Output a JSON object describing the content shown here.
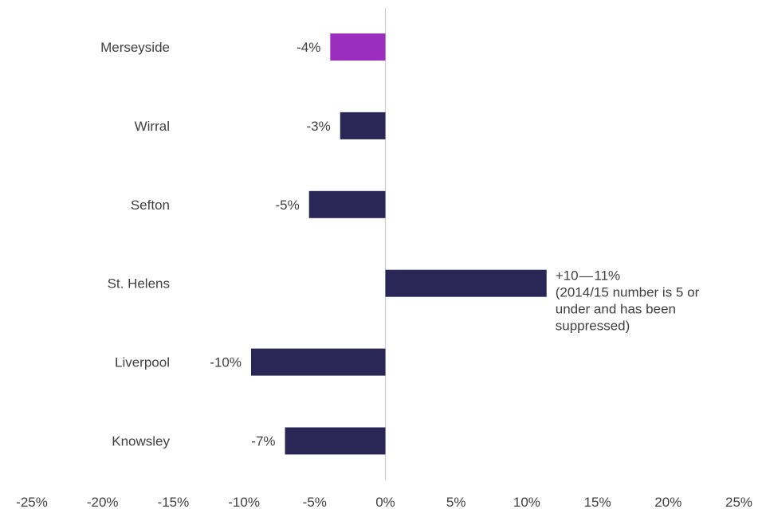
{
  "chart_data": {
    "type": "bar",
    "orientation": "horizontal",
    "categories": [
      "Merseyside",
      "Wirral",
      "Sefton",
      "St. Helens",
      "Liverpool",
      "Knowsley"
    ],
    "values": [
      -3.9,
      -3.2,
      -5.4,
      11.4,
      -9.5,
      -7.1
    ],
    "value_labels": [
      "-4%",
      "-3%",
      "-5%",
      "",
      "-10%",
      "-7%"
    ],
    "annotations": [
      {
        "category": "St. Helens",
        "lines": [
          "+10 — 11%",
          "(2014/15 number is 5 or",
          "under and has been",
          "suppressed)"
        ]
      }
    ],
    "xlim": [
      -25,
      25
    ],
    "xticks": [
      -25,
      -20,
      -15,
      -10,
      -5,
      0,
      5,
      10,
      15,
      20,
      25
    ],
    "xtick_labels": [
      "-25%",
      "-20%",
      "-15%",
      "-10%",
      "-5%",
      "0%",
      "5%",
      "10%",
      "15%",
      "20%",
      "25%"
    ],
    "bar_colors": [
      "#9b2ebc",
      "#2a2756",
      "#2a2756",
      "#2a2756",
      "#2a2756",
      "#2a2756"
    ],
    "axis_color": "#cccccc",
    "grid": false,
    "legend": "none"
  }
}
